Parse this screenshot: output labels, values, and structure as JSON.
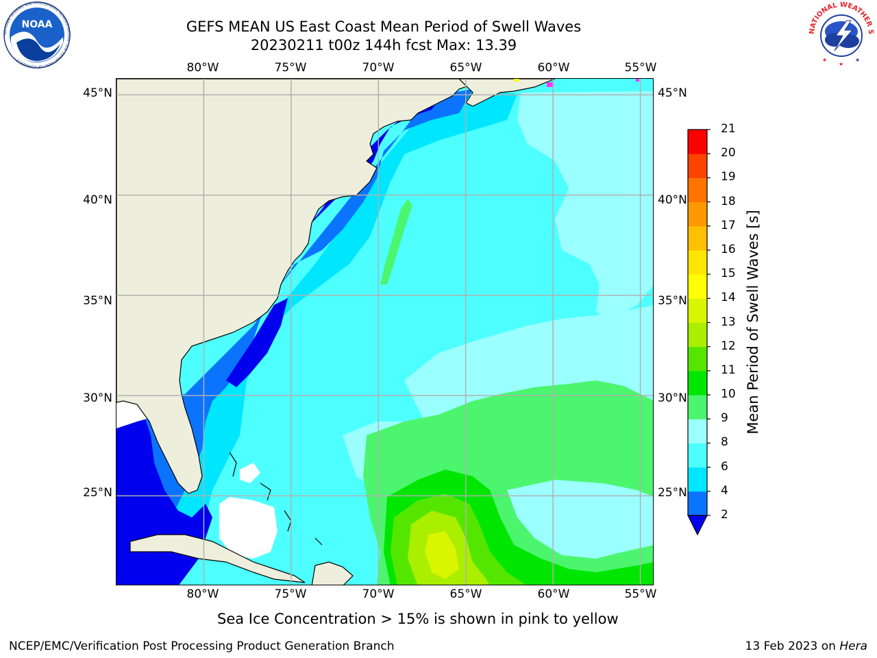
{
  "title": {
    "line1": "GEFS MEAN US East Coast Mean Period of Swell Waves",
    "line2": "20230211 t00z 144h fcst   Max: 13.39"
  },
  "axes": {
    "lon_labels": [
      "80°W",
      "75°W",
      "70°W",
      "65°W",
      "60°W",
      "55°W"
    ],
    "lat_labels": [
      "45°N",
      "40°N",
      "35°N",
      "30°N",
      "25°N"
    ],
    "lon_values": [
      -80,
      -75,
      -70,
      -65,
      -60,
      -55
    ],
    "lat_values": [
      45,
      40,
      35,
      30,
      25
    ],
    "lon_range": [
      -85,
      -54.2
    ],
    "lat_range": [
      20.5,
      45.8
    ]
  },
  "colorbar": {
    "label": "Mean Period of Swell Waves [s]",
    "ticks": [
      "2",
      "4",
      "6",
      "8",
      "9",
      "10",
      "11",
      "12",
      "13",
      "14",
      "15",
      "16",
      "17",
      "18",
      "19",
      "20",
      "21"
    ],
    "colors": [
      "#0b74ff",
      "#00e6ff",
      "#4dffff",
      "#9bffff",
      "#4cf56e",
      "#00e600",
      "#55e600",
      "#aaee00",
      "#d9f500",
      "#ffff00",
      "#ffe600",
      "#ffc000",
      "#ff9900",
      "#ff7300",
      "#ff4400",
      "#ff0000"
    ],
    "under_color": "#0000ee",
    "extend": "min"
  },
  "map": {
    "land_color": "#eeeedd",
    "missing_color": "#ffffff",
    "gridline_color": "#b0b0b0",
    "ocean_base_color": "#4dffff",
    "sea_ice_color": "#ff33ff"
  },
  "footnote": "Sea Ice Concentration > 15% is shown in pink to yellow",
  "credits": {
    "left": "NCEP/EMC/Verification Post Processing Product Generation Branch",
    "date": "13 Feb 2023 on ",
    "host": "Hera"
  },
  "logos": {
    "noaa_text": "NOAA",
    "noaa_ring": "NATIONAL OCEANIC AND ATMOSPHERIC ADMINISTRATION · U.S. DEPARTMENT OF COMMERCE ·",
    "nws_ring": "NATIONAL WEATHER SERVICE"
  }
}
